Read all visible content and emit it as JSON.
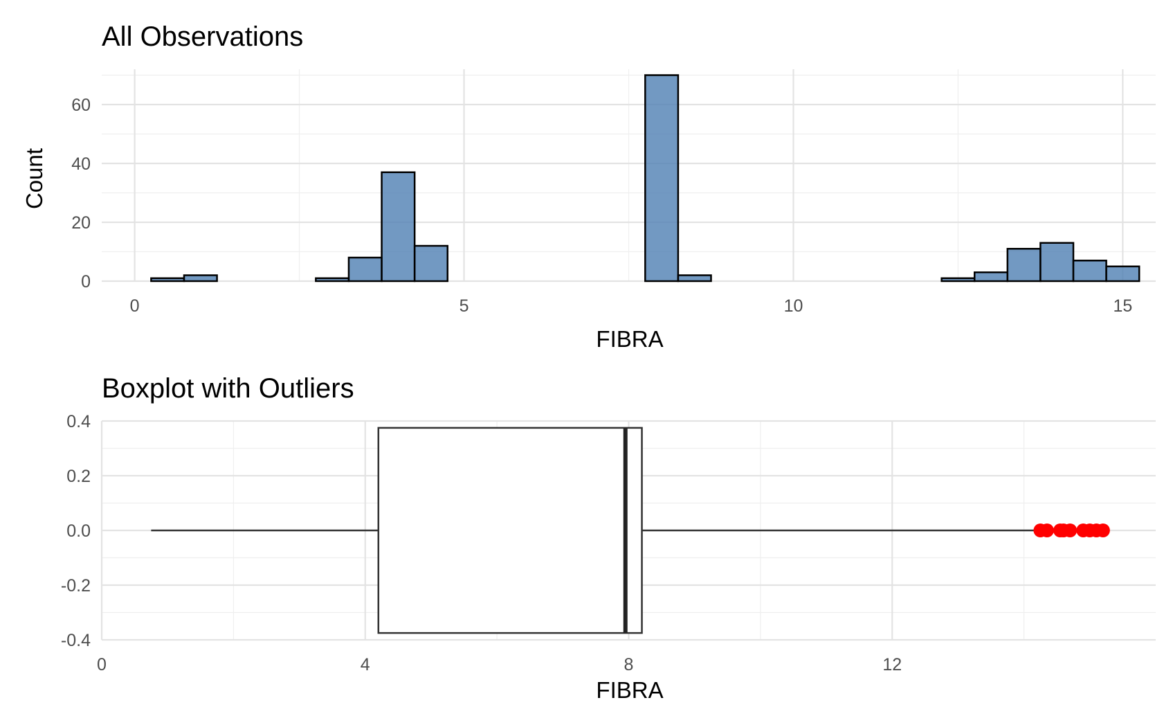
{
  "chart_data": [
    {
      "type": "bar",
      "subtype": "histogram",
      "title": "All Observations",
      "xlabel": "FIBRA",
      "ylabel": "Count",
      "xlim": [
        -0.5,
        15.5
      ],
      "ylim": [
        0,
        72
      ],
      "x_ticks": [
        0,
        5,
        10,
        15
      ],
      "y_ticks": [
        0,
        20,
        40,
        60
      ],
      "bin_width": 0.5,
      "bins": [
        {
          "x0": 0.25,
          "x1": 0.75,
          "count": 1
        },
        {
          "x0": 0.75,
          "x1": 1.25,
          "count": 2
        },
        {
          "x0": 1.25,
          "x1": 1.75,
          "count": 0
        },
        {
          "x0": 1.75,
          "x1": 2.25,
          "count": 0
        },
        {
          "x0": 2.25,
          "x1": 2.75,
          "count": 0
        },
        {
          "x0": 2.75,
          "x1": 3.25,
          "count": 1
        },
        {
          "x0": 3.25,
          "x1": 3.75,
          "count": 8
        },
        {
          "x0": 3.75,
          "x1": 4.25,
          "count": 37
        },
        {
          "x0": 4.25,
          "x1": 4.75,
          "count": 12
        },
        {
          "x0": 4.75,
          "x1": 5.25,
          "count": 0
        },
        {
          "x0": 5.25,
          "x1": 5.75,
          "count": 0
        },
        {
          "x0": 5.75,
          "x1": 6.25,
          "count": 0
        },
        {
          "x0": 6.25,
          "x1": 6.75,
          "count": 0
        },
        {
          "x0": 6.75,
          "x1": 7.25,
          "count": 0
        },
        {
          "x0": 7.25,
          "x1": 7.75,
          "count": 0
        },
        {
          "x0": 7.75,
          "x1": 8.25,
          "count": 70
        },
        {
          "x0": 8.25,
          "x1": 8.75,
          "count": 2
        },
        {
          "x0": 8.75,
          "x1": 9.25,
          "count": 0
        },
        {
          "x0": 9.25,
          "x1": 9.75,
          "count": 0
        },
        {
          "x0": 9.75,
          "x1": 10.25,
          "count": 0
        },
        {
          "x0": 10.25,
          "x1": 10.75,
          "count": 0
        },
        {
          "x0": 10.75,
          "x1": 11.25,
          "count": 0
        },
        {
          "x0": 11.25,
          "x1": 11.75,
          "count": 0
        },
        {
          "x0": 11.75,
          "x1": 12.25,
          "count": 0
        },
        {
          "x0": 12.25,
          "x1": 12.75,
          "count": 1
        },
        {
          "x0": 12.75,
          "x1": 13.25,
          "count": 3
        },
        {
          "x0": 13.25,
          "x1": 13.75,
          "count": 11
        },
        {
          "x0": 13.75,
          "x1": 14.25,
          "count": 13
        },
        {
          "x0": 14.25,
          "x1": 14.75,
          "count": 7
        },
        {
          "x0": 14.75,
          "x1": 15.25,
          "count": 5
        }
      ],
      "grid": true,
      "color": "#4f7fb3"
    },
    {
      "type": "boxplot",
      "title": "Boxplot with Outliers",
      "xlabel": "FIBRA",
      "ylabel": "",
      "xlim": [
        0,
        16
      ],
      "ylim": [
        -0.4,
        0.4
      ],
      "x_ticks": [
        0,
        4,
        8,
        12
      ],
      "y_ticks": [
        "0.4",
        "0.2",
        "0.0",
        "-0.2",
        "-0.4"
      ],
      "box": {
        "whisker_low": 0.75,
        "q1": 4.2,
        "median": 7.95,
        "q3": 8.2,
        "whisker_high": 14.2,
        "half_height": 0.375
      },
      "outliers": [
        14.25,
        14.35,
        14.55,
        14.6,
        14.7,
        14.9,
        15.0,
        15.1,
        15.2
      ],
      "outlier_color": "#ff0000",
      "grid": true
    }
  ]
}
